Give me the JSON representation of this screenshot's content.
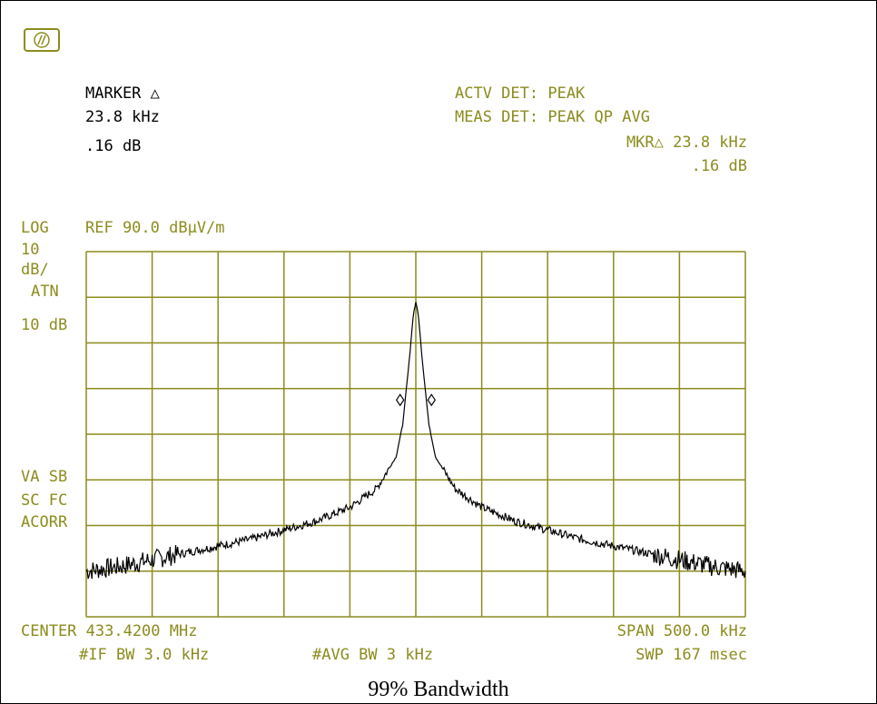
{
  "marker": {
    "label": "MARKER △",
    "freq": "23.8 kHz",
    "amp": ".16 dB"
  },
  "detector": {
    "actv": "ACTV DET: PEAK",
    "meas": "MEAS DET: PEAK QP AVG",
    "mkr_freq": "MKR△ 23.8 kHz",
    "mkr_amp": ".16 dB"
  },
  "scale": {
    "log": "LOG",
    "ref": "REF 90.0 dBµV/m",
    "div": "10",
    "div_unit": "dB/",
    "atn": "ATN",
    "atn_val": "10 dB"
  },
  "status": {
    "line1": "VA SB",
    "line2": "SC FC",
    "line3": "ACORR"
  },
  "footer": {
    "center": "CENTER 433.4200 MHz",
    "span": "SPAN 500.0 kHz",
    "if_bw": "#IF BW 3.0 kHz",
    "avg_bw": "#AVG BW 3 kHz",
    "swp": "SWP 167 msec"
  },
  "caption": "99% Bandwidth",
  "colors": {
    "graticule": "#8c8c1e",
    "trace": "#000000",
    "text": "#8c8c1e"
  },
  "chart_data": {
    "type": "line",
    "title": "99% Bandwidth",
    "x_unit": "kHz offset from center",
    "y_unit": "dBµV/m",
    "xlim": [
      -250,
      250
    ],
    "ylim": [
      10,
      90
    ],
    "grid": true,
    "x_divisions": 10,
    "y_divisions": 8,
    "series": [
      {
        "values_x": [
          -250,
          -225,
          -200,
          -175,
          -150,
          -125,
          -100,
          -75,
          -50,
          -30,
          -15,
          -10,
          -5,
          -2,
          0,
          2,
          5,
          10,
          15,
          30,
          50,
          75,
          100,
          125,
          150,
          175,
          200,
          225,
          250
        ],
        "values_y": [
          20,
          21,
          22.5,
          24,
          25.5,
          27,
          29,
          31,
          34,
          38,
          45,
          52,
          66,
          76,
          79,
          76,
          66,
          52,
          45,
          38,
          34,
          31,
          29,
          27,
          25.5,
          24,
          22.5,
          21,
          20
        ]
      }
    ],
    "markers": [
      {
        "x": -11.9,
        "y": 57.5
      },
      {
        "x": 11.9,
        "y": 57.5
      }
    ]
  }
}
